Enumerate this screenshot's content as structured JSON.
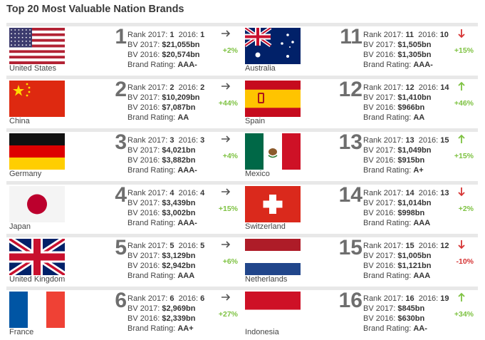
{
  "title": "Top 20 Most Valuable Nation Brands",
  "colors": {
    "up": "#7ec242",
    "down": "#d63434",
    "neutral": "#555555"
  },
  "labels": {
    "rank_2017": "Rank 2017:",
    "rank_2016": "2016:",
    "bv_2017": "BV 2017:",
    "bv_2016": "BV 2016:",
    "rating": "Brand Rating:"
  },
  "brands": [
    {
      "rank": "1",
      "country": "United States",
      "flag": "usa-flag",
      "rank_2017": "1",
      "rank_2016": "1",
      "bv_2017": "$21,055bn",
      "bv_2016": "$20,574bn",
      "rating": "AAA-",
      "change": "+2%",
      "trend": "same"
    },
    {
      "rank": "2",
      "country": "China",
      "flag": "china-flag",
      "rank_2017": "2",
      "rank_2016": "2",
      "bv_2017": "$10,209bn",
      "bv_2016": "$7,087bn",
      "rating": "AA",
      "change": "+44%",
      "trend": "same"
    },
    {
      "rank": "3",
      "country": "Germany",
      "flag": "germany-flag",
      "rank_2017": "3",
      "rank_2016": "3",
      "bv_2017": "$4,021bn",
      "bv_2016": "$3,882bn",
      "rating": "AAA-",
      "change": "+4%",
      "trend": "same"
    },
    {
      "rank": "4",
      "country": "Japan",
      "flag": "japan-flag",
      "rank_2017": "4",
      "rank_2016": "4",
      "bv_2017": "$3,439bn",
      "bv_2016": "$3,002bn",
      "rating": "AAA-",
      "change": "+15%",
      "trend": "same"
    },
    {
      "rank": "5",
      "country": "United Kingdom",
      "flag": "uk-flag",
      "rank_2017": "5",
      "rank_2016": "5",
      "bv_2017": "$3,129bn",
      "bv_2016": "$2,942bn",
      "rating": "AAA",
      "change": "+6%",
      "trend": "same"
    },
    {
      "rank": "6",
      "country": "France",
      "flag": "france-flag",
      "rank_2017": "6",
      "rank_2016": "6",
      "bv_2017": "$2,969bn",
      "bv_2016": "$2,339bn",
      "rating": "AA+",
      "change": "+27%",
      "trend": "same"
    },
    {
      "rank": "11",
      "country": "Australia",
      "flag": "australia-flag",
      "rank_2017": "11",
      "rank_2016": "10",
      "bv_2017": "$1,505bn",
      "bv_2016": "$1,305bn",
      "rating": "AAA-",
      "change": "+15%",
      "trend": "down"
    },
    {
      "rank": "12",
      "country": "Spain",
      "flag": "spain-flag",
      "rank_2017": "12",
      "rank_2016": "14",
      "bv_2017": "$1,410bn",
      "bv_2016": "$966bn",
      "rating": "AA",
      "change": "+46%",
      "trend": "up"
    },
    {
      "rank": "13",
      "country": "Mexico",
      "flag": "mexico-flag",
      "rank_2017": "13",
      "rank_2016": "15",
      "bv_2017": "$1,049bn",
      "bv_2016": "$915bn",
      "rating": "A+",
      "change": "+15%",
      "trend": "up"
    },
    {
      "rank": "14",
      "country": "Switzerland",
      "flag": "switzerland-flag",
      "rank_2017": "14",
      "rank_2016": "13",
      "bv_2017": "$1,014bn",
      "bv_2016": "$998bn",
      "rating": "AAA",
      "change": "+2%",
      "trend": "down"
    },
    {
      "rank": "15",
      "country": "Netherlands",
      "flag": "netherlands-flag",
      "rank_2017": "15",
      "rank_2016": "12",
      "bv_2017": "$1,005bn",
      "bv_2016": "$1,121bn",
      "rating": "AAA",
      "change": "-10%",
      "trend": "down"
    },
    {
      "rank": "16",
      "country": "Indonesia",
      "flag": "indonesia-flag",
      "rank_2017": "16",
      "rank_2016": "19",
      "bv_2017": "$845bn",
      "bv_2016": "$630bn",
      "rating": "AA-",
      "change": "+34%",
      "trend": "up"
    }
  ]
}
